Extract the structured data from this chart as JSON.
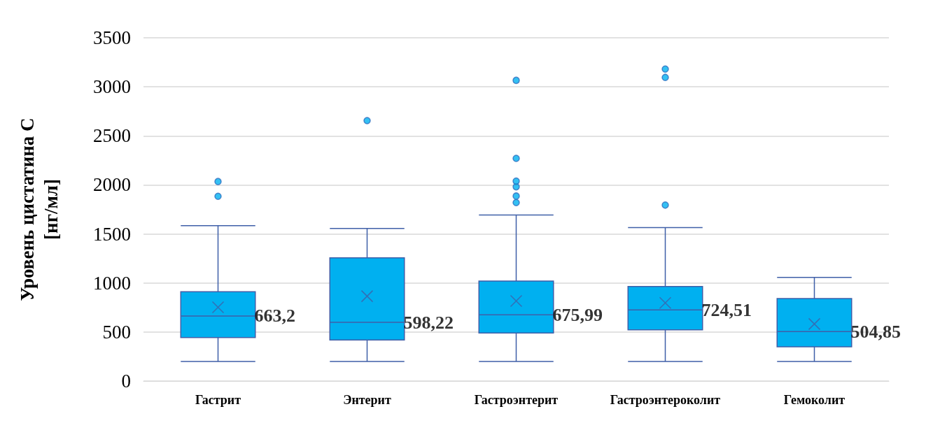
{
  "chart_data": {
    "type": "box",
    "ylabel": "Уровень цистатина С\n[нг/мл]",
    "categories": [
      "Гастрит",
      "Энтерит",
      "Гастроэнтерит",
      "Гастроэнтероколит",
      "Гемоколит"
    ],
    "boxes": [
      {
        "low": 200,
        "q1": 444,
        "median": 663.2,
        "q3": 911,
        "high": 1585,
        "mean": 752,
        "outliers": [
          1884,
          2034
        ]
      },
      {
        "low": 200,
        "q1": 419,
        "median": 598.22,
        "q3": 1256,
        "high": 1555,
        "mean": 865,
        "outliers": [
          2655
        ]
      },
      {
        "low": 200,
        "q1": 490,
        "median": 675.99,
        "q3": 1019,
        "high": 1693,
        "mean": 816,
        "outliers": [
          1820,
          1886,
          1981,
          2038,
          2270,
          3066
        ]
      },
      {
        "low": 200,
        "q1": 522,
        "median": 724.51,
        "q3": 964,
        "high": 1565,
        "mean": 796,
        "outliers": [
          1794,
          3096,
          3181
        ]
      },
      {
        "low": 200,
        "q1": 350,
        "median": 504.85,
        "q3": 842,
        "high": 1056,
        "mean": 582
      }
    ],
    "color": "#00b0f0",
    "ylim": [
      0,
      3500
    ],
    "yticks": [
      0,
      500,
      1000,
      1500,
      2000,
      2500,
      3000,
      3500
    ],
    "value_labels": [
      "663,2",
      "598,22",
      "675,99",
      "724,51",
      "504,85"
    ],
    "grid": "y",
    "marker": "cross"
  }
}
